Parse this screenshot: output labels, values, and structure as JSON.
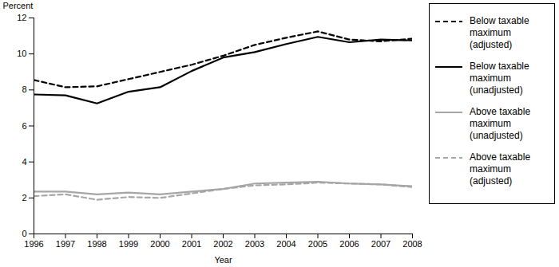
{
  "chart_data": {
    "type": "line",
    "x_label": "Year",
    "y_label": "Percent",
    "x": [
      1996,
      1997,
      1998,
      1999,
      2000,
      2001,
      2002,
      2003,
      2004,
      2005,
      2006,
      2007,
      2008
    ],
    "series": [
      {
        "name": "Below taxable maximum (adjusted)",
        "color": "#000000",
        "line_style": "dashed",
        "values": [
          8.55,
          8.15,
          8.2,
          8.6,
          9.0,
          9.4,
          9.9,
          10.5,
          10.9,
          11.25,
          10.8,
          10.7,
          10.85
        ]
      },
      {
        "name": "Below taxable maximum (unadjusted)",
        "color": "#000000",
        "line_style": "solid",
        "values": [
          7.75,
          7.7,
          7.25,
          7.9,
          8.15,
          9.05,
          9.8,
          10.1,
          10.55,
          10.95,
          10.65,
          10.8,
          10.75
        ]
      },
      {
        "name": "Above taxable maximum (unadjusted)",
        "color": "#a6a6a6",
        "line_style": "solid",
        "values": [
          2.35,
          2.35,
          2.2,
          2.3,
          2.2,
          2.35,
          2.5,
          2.8,
          2.85,
          2.9,
          2.8,
          2.75,
          2.65
        ]
      },
      {
        "name": "Above taxable maximum (adjusted)",
        "color": "#a6a6a6",
        "line_style": "dashed",
        "values": [
          2.1,
          2.2,
          1.9,
          2.05,
          2.0,
          2.25,
          2.5,
          2.7,
          2.75,
          2.85,
          2.8,
          2.75,
          2.6
        ]
      }
    ],
    "xlim": [
      1996,
      2008
    ],
    "xticks": [
      1996,
      1997,
      1998,
      1999,
      2000,
      2001,
      2002,
      2003,
      2004,
      2005,
      2006,
      2007,
      2008
    ],
    "ylim": [
      0,
      12
    ],
    "yticks": [
      0,
      2,
      4,
      6,
      8,
      10,
      12
    ],
    "grid": false,
    "legend": "right"
  }
}
